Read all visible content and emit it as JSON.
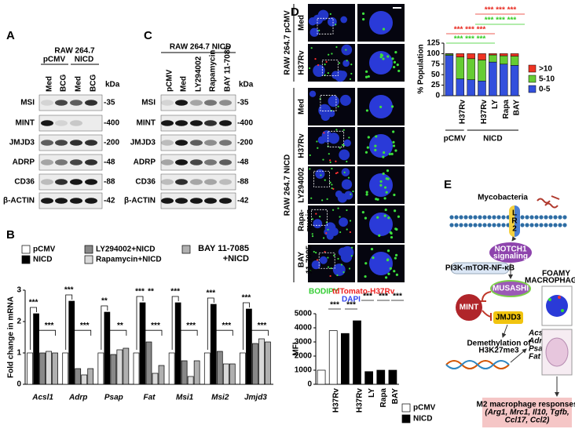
{
  "panel_labels": {
    "a": "A",
    "b": "B",
    "c": "C",
    "d": "D",
    "e": "E"
  },
  "panel_a": {
    "cell_line": "RAW 264.7",
    "groups": [
      "pCMV",
      "NICD"
    ],
    "lanes": [
      "Med",
      "BCG",
      "Med",
      "BCG"
    ],
    "unit": "kDa",
    "rows": [
      {
        "name": "MSI",
        "kda": "-35"
      },
      {
        "name": "MINT",
        "kda": "-400"
      },
      {
        "name": "JMJD3",
        "kda": "-200"
      },
      {
        "name": "ADRP",
        "kda": "-48"
      },
      {
        "name": "CD36",
        "kda": "-88"
      },
      {
        "name": "β-ACTIN",
        "kda": "-42"
      }
    ]
  },
  "panel_c": {
    "cell_line": "RAW 264.7 NICD",
    "lanes": [
      "pCMV",
      "Med",
      "LY294002",
      "Rapamycin",
      "BAY 11-7085"
    ],
    "unit": "kDa",
    "rows": [
      {
        "name": "MSI",
        "kda": "-35"
      },
      {
        "name": "MINT",
        "kda": "-400"
      },
      {
        "name": "JMJD3",
        "kda": "-200"
      },
      {
        "name": "ADRP",
        "kda": "-48"
      },
      {
        "name": "CD36",
        "kda": "-88"
      },
      {
        "name": "β-ACTIN",
        "kda": "-42"
      }
    ]
  },
  "panel_d": {
    "groups": [
      "RAW 264.7 pCMV",
      "RAW 264.7 NICD"
    ],
    "rows": [
      [
        "Med"
      ],
      [
        "H37Rv"
      ],
      [
        "Med"
      ],
      [
        "H37Rv"
      ],
      [
        "LY294002"
      ],
      [
        "Rapa-",
        "mycin"
      ],
      [
        "BAY",
        "11-7085"
      ]
    ],
    "stains": [
      {
        "text": "BODIPY",
        "color": "#33cc33"
      },
      {
        "text": "tdTomato-H37Rv",
        "color": "#ee2222"
      },
      {
        "text": "DAPI",
        "color": "#3344ee"
      }
    ]
  },
  "chart_data": [
    {
      "type": "bar",
      "ylabel": "Fold change in mRNA",
      "categories": [
        "Acsl1",
        "Adrp",
        "Psap",
        "Fat",
        "Msi1",
        "Msi2",
        "Jmjd3"
      ],
      "series": [
        {
          "name": "pCMV",
          "color": "#ffffff",
          "values": [
            1,
            1,
            1,
            1,
            1,
            1,
            1
          ]
        },
        {
          "name": "NICD",
          "color": "#000000",
          "values": [
            2.25,
            2.65,
            2.3,
            2.6,
            2.6,
            2.55,
            2.4
          ]
        },
        {
          "name": "LY294002+NICD",
          "color": "#888888",
          "values": [
            1.0,
            0.5,
            0.95,
            1.35,
            0.75,
            1.05,
            1.3
          ]
        },
        {
          "name": "Rapamycin+NICD",
          "color": "#d9d9d9",
          "values": [
            1.05,
            0.3,
            1.1,
            0.35,
            0.25,
            0.65,
            1.45
          ]
        },
        {
          "name": "BAY 11-7085 +NICD",
          "color": "#b0b0b0",
          "values": [
            1.0,
            0.5,
            1.15,
            0.6,
            0.75,
            0.65,
            1.35
          ]
        }
      ],
      "ylim": [
        0,
        3
      ],
      "yticks": [
        0,
        1,
        2,
        3
      ],
      "annotations": [
        [
          "***",
          "***"
        ],
        [
          "***",
          "***"
        ],
        [
          "**",
          "**"
        ],
        [
          "***",
          "**",
          "***"
        ],
        [
          "***",
          "***"
        ],
        [
          "***",
          "***"
        ],
        [
          "***",
          "***"
        ]
      ]
    },
    {
      "type": "stacked_bar",
      "ylabel": "% Population",
      "categories": [
        null,
        "H37Rv",
        null,
        "H37Rv",
        "LY",
        "Rapa",
        "BAY"
      ],
      "groups": [
        "pCMV",
        "NICD"
      ],
      "series": [
        {
          "name": "0-5",
          "color": "#3350dd",
          "values": [
            96,
            40,
            38,
            35,
            80,
            75,
            72
          ]
        },
        {
          "name": "5-10",
          "color": "#66cc33",
          "values": [
            3,
            52,
            50,
            50,
            17,
            20,
            22
          ]
        },
        {
          "name": ">10",
          "color": "#ee3322",
          "values": [
            1,
            8,
            12,
            15,
            3,
            5,
            6
          ]
        }
      ],
      "ylim": [
        0,
        125
      ],
      "yticks": [
        0,
        25,
        50,
        75,
        100,
        125
      ],
      "annotations": [
        {
          "text": "*** *** ***",
          "color": "#e8281e"
        },
        {
          "text": "*** *** ***",
          "color": "#33cc22"
        },
        {
          "text": "*** *** ***",
          "color": "#e8281e"
        },
        {
          "text": "*** *** ***",
          "color": "#33cc22"
        }
      ]
    },
    {
      "type": "bar",
      "ylabel": "MFI",
      "categories": [
        null,
        "H37Rv",
        null,
        "H37Rv",
        "LY",
        "Rapa",
        "BAY"
      ],
      "series": [
        {
          "name": "pCMV",
          "color": "#ffffff",
          "values": [
            1000,
            3800,
            null,
            null,
            null,
            null,
            null
          ]
        },
        {
          "name": "NICD",
          "color": "#000000",
          "values": [
            null,
            null,
            3600,
            4500,
            900,
            1000,
            1000
          ]
        }
      ],
      "ylim": [
        0,
        5000
      ],
      "yticks": [
        0,
        1000,
        2000,
        3000,
        4000,
        5000
      ],
      "annotations": [
        "***",
        "***",
        "***",
        "***",
        "***"
      ]
    }
  ],
  "panel_e": {
    "mycobacteria": "Mycobacteria",
    "receptor": [
      "L",
      "R",
      "2"
    ],
    "notch": [
      "NOTCH1",
      "signaling"
    ],
    "pathway": "PI3K-mTOR-NF-κB",
    "musashi": "MUSASHI",
    "mint": "MINT",
    "jmjd3": "JMJD3",
    "demethylation": [
      "Demethylation of",
      "H3K27me3"
    ],
    "genes": [
      "Acsl1",
      "Adrp",
      "Psap",
      "Fat"
    ],
    "foamy": [
      "FOAMY",
      "MACROPHAGES"
    ],
    "m2": [
      "M2 macrophage responses",
      "(Arg1, Mrc1, Il10, Tgfb,",
      "Ccl17, Ccl2)"
    ]
  }
}
